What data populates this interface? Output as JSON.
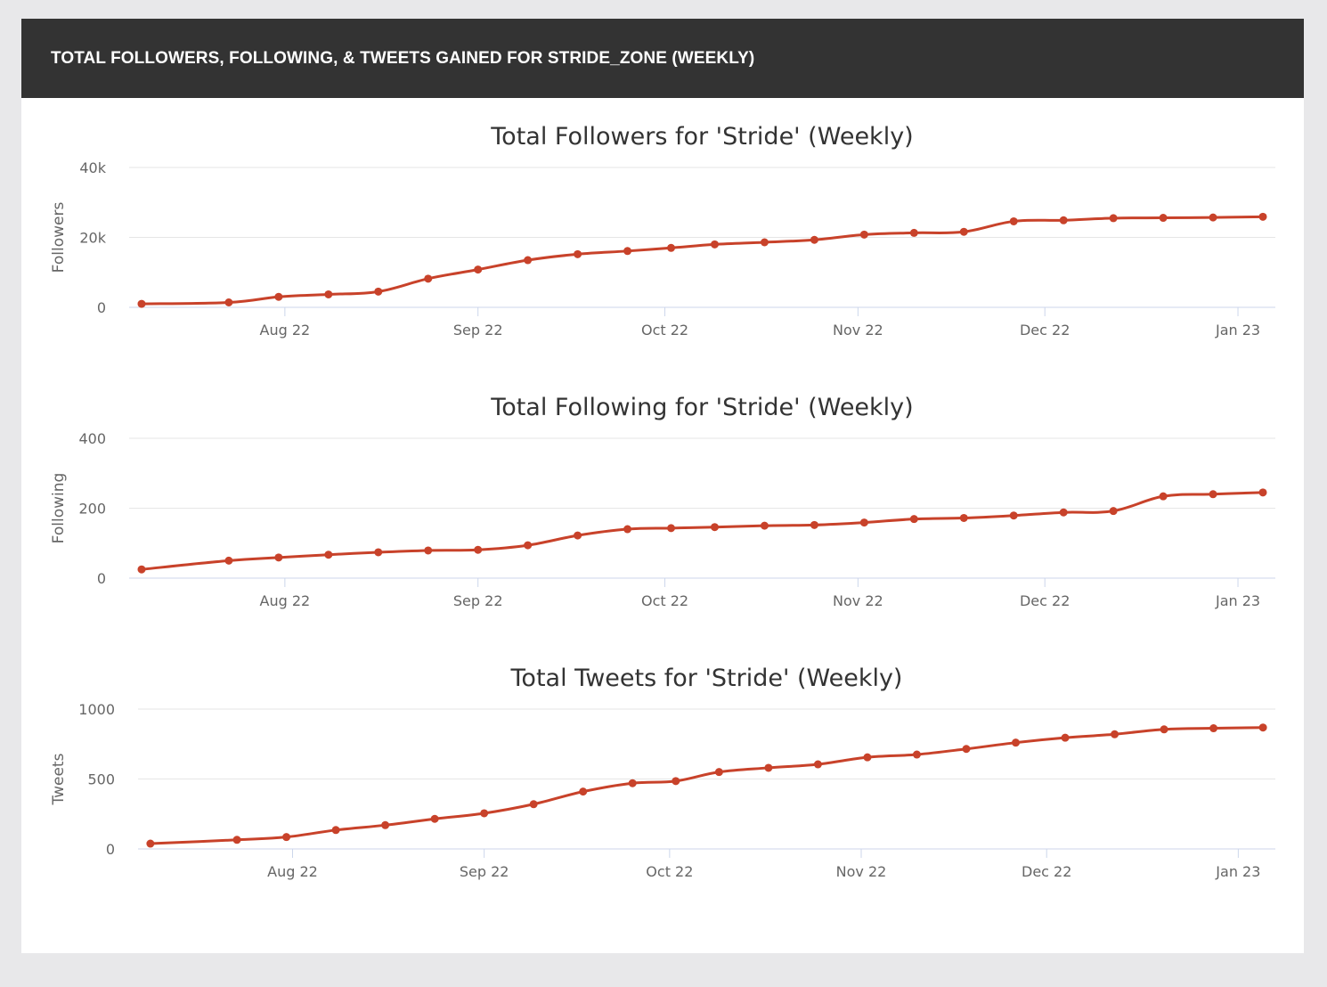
{
  "header": {
    "title": "TOTAL FOLLOWERS, FOLLOWING, & TWEETS GAINED FOR STRIDE_ZONE (WEEKLY)"
  },
  "colors": {
    "series": "#c8422a",
    "header_bg": "#333333",
    "grid": "#e6e6e6",
    "axis": "#ccd6eb"
  },
  "chart_data": [
    {
      "type": "line",
      "title": "Total Followers for 'Stride' (Weekly)",
      "xlabel": "",
      "ylabel": "Followers",
      "ylim": [
        0,
        40000
      ],
      "yticks": [
        {
          "value": 0,
          "label": "0"
        },
        {
          "value": 20000,
          "label": "20k"
        },
        {
          "value": 40000,
          "label": "40k"
        }
      ],
      "xticks": [
        {
          "date": "2022-08-01",
          "label": "Aug 22"
        },
        {
          "date": "2022-09-01",
          "label": "Sep 22"
        },
        {
          "date": "2022-10-01",
          "label": "Oct 22"
        },
        {
          "date": "2022-11-01",
          "label": "Nov 22"
        },
        {
          "date": "2022-12-01",
          "label": "Dec 22"
        },
        {
          "date": "2023-01-01",
          "label": "Jan 23"
        }
      ],
      "xlim": [
        "2022-07-07",
        "2023-01-07"
      ],
      "grid": true,
      "legend": "none",
      "x": [
        "2022-07-09",
        "2022-07-23",
        "2022-07-31",
        "2022-08-08",
        "2022-08-16",
        "2022-08-24",
        "2022-09-01",
        "2022-09-09",
        "2022-09-17",
        "2022-09-25",
        "2022-10-02",
        "2022-10-09",
        "2022-10-17",
        "2022-10-25",
        "2022-11-02",
        "2022-11-10",
        "2022-11-18",
        "2022-11-26",
        "2022-12-04",
        "2022-12-12",
        "2022-12-20",
        "2022-12-28",
        "2023-01-05"
      ],
      "series": [
        {
          "values": [
            1000,
            1400,
            3000,
            3700,
            4500,
            8200,
            10800,
            13500,
            15200,
            16100,
            17000,
            18000,
            18600,
            19300,
            20800,
            21300,
            21600,
            24600,
            24900,
            25500,
            25600,
            25700,
            25900
          ]
        }
      ]
    },
    {
      "type": "line",
      "title": "Total Following for 'Stride' (Weekly)",
      "xlabel": "",
      "ylabel": "Following",
      "ylim": [
        0,
        400
      ],
      "yticks": [
        {
          "value": 0,
          "label": "0"
        },
        {
          "value": 200,
          "label": "200"
        },
        {
          "value": 400,
          "label": "400"
        }
      ],
      "xticks": [
        {
          "date": "2022-08-01",
          "label": "Aug 22"
        },
        {
          "date": "2022-09-01",
          "label": "Sep 22"
        },
        {
          "date": "2022-10-01",
          "label": "Oct 22"
        },
        {
          "date": "2022-11-01",
          "label": "Nov 22"
        },
        {
          "date": "2022-12-01",
          "label": "Dec 22"
        },
        {
          "date": "2023-01-01",
          "label": "Jan 23"
        }
      ],
      "xlim": [
        "2022-07-07",
        "2023-01-07"
      ],
      "grid": true,
      "legend": "none",
      "x": [
        "2022-07-09",
        "2022-07-23",
        "2022-07-31",
        "2022-08-08",
        "2022-08-16",
        "2022-08-24",
        "2022-09-01",
        "2022-09-09",
        "2022-09-17",
        "2022-09-25",
        "2022-10-02",
        "2022-10-09",
        "2022-10-17",
        "2022-10-25",
        "2022-11-02",
        "2022-11-10",
        "2022-11-18",
        "2022-11-26",
        "2022-12-04",
        "2022-12-12",
        "2022-12-20",
        "2022-12-28",
        "2023-01-05"
      ],
      "series": [
        {
          "values": [
            25,
            50,
            59,
            67,
            74,
            79,
            81,
            94,
            122,
            140,
            143,
            146,
            150,
            152,
            159,
            169,
            172,
            179,
            188,
            192,
            234,
            240,
            245
          ]
        }
      ]
    },
    {
      "type": "line",
      "title": "Total Tweets for 'Stride' (Weekly)",
      "xlabel": "",
      "ylabel": "Tweets",
      "ylim": [
        0,
        1000
      ],
      "yticks": [
        {
          "value": 0,
          "label": "0"
        },
        {
          "value": 500,
          "label": "500"
        },
        {
          "value": 1000,
          "label": "1000"
        }
      ],
      "xticks": [
        {
          "date": "2022-08-01",
          "label": "Aug 22"
        },
        {
          "date": "2022-09-01",
          "label": "Sep 22"
        },
        {
          "date": "2022-10-01",
          "label": "Oct 22"
        },
        {
          "date": "2022-11-01",
          "label": "Nov 22"
        },
        {
          "date": "2022-12-01",
          "label": "Dec 22"
        },
        {
          "date": "2023-01-01",
          "label": "Jan 23"
        }
      ],
      "xlim": [
        "2022-07-07",
        "2023-01-07"
      ],
      "grid": true,
      "legend": "none",
      "x": [
        "2022-07-09",
        "2022-07-23",
        "2022-07-31",
        "2022-08-08",
        "2022-08-16",
        "2022-08-24",
        "2022-09-01",
        "2022-09-09",
        "2022-09-17",
        "2022-09-25",
        "2022-10-02",
        "2022-10-09",
        "2022-10-17",
        "2022-10-25",
        "2022-11-02",
        "2022-11-10",
        "2022-11-18",
        "2022-11-26",
        "2022-12-04",
        "2022-12-12",
        "2022-12-20",
        "2022-12-28",
        "2023-01-05"
      ],
      "series": [
        {
          "values": [
            38,
            65,
            85,
            135,
            170,
            215,
            255,
            320,
            410,
            470,
            485,
            550,
            580,
            605,
            655,
            675,
            715,
            760,
            795,
            820,
            855,
            863,
            868
          ]
        }
      ]
    }
  ]
}
